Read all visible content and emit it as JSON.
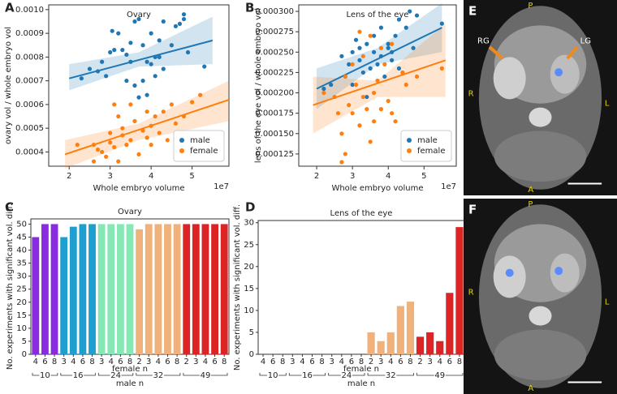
{
  "chart_data": [
    {
      "type": "scatter",
      "panel_label": "A",
      "title": "Ovary",
      "x_label": "Whole embryo volume",
      "x_offset_label": "1e7",
      "y_label": "ovary vol / whole embryo vol",
      "xlim": [
        1.5,
        5.9
      ],
      "xticks": [
        2,
        3,
        4,
        5
      ],
      "ylim": [
        0.00034,
        0.00102
      ],
      "yticks": [
        0.0004,
        0.0005,
        0.0006,
        0.0007,
        0.0008,
        0.0009,
        {
          "value": 0.001,
          "label": "0.0010"
        }
      ],
      "legend": "lower right",
      "series": [
        {
          "name": "male",
          "color": "#1f77b4",
          "x": [
            2.3,
            2.5,
            2.7,
            2.8,
            2.9,
            3.0,
            3.05,
            3.1,
            3.2,
            3.3,
            3.4,
            3.4,
            3.5,
            3.5,
            3.6,
            3.6,
            3.7,
            3.7,
            3.8,
            3.8,
            3.9,
            3.9,
            4.0,
            4.0,
            4.1,
            4.1,
            4.2,
            4.2,
            4.3,
            4.3,
            4.5,
            4.6,
            4.7,
            4.8,
            4.8,
            4.9,
            5.3
          ],
          "values": [
            0.00071,
            0.00075,
            0.00074,
            0.00078,
            0.00072,
            0.00082,
            0.00091,
            0.00083,
            0.0009,
            0.00083,
            0.00081,
            0.0007,
            0.00078,
            0.00086,
            0.00095,
            0.00068,
            0.00096,
            0.00063,
            0.00085,
            0.0007,
            0.00078,
            0.00064,
            0.0009,
            0.00077,
            0.0008,
            0.00072,
            0.0008,
            0.00087,
            0.00095,
            0.00075,
            0.00085,
            0.00093,
            0.00094,
            0.00096,
            0.00098,
            0.00082,
            0.00076
          ],
          "fit": {
            "x": [
              2,
              5.5
            ],
            "values": [
              0.00071,
              0.00087
            ]
          },
          "ci": {
            "x": [
              2,
              3.7,
              5.5
            ],
            "lower": [
              0.00066,
              0.00076,
              0.00077
            ],
            "upper": [
              0.00077,
              0.00082,
              0.00097
            ]
          }
        },
        {
          "name": "female",
          "color": "#ff7f0e",
          "x": [
            2.2,
            2.6,
            2.6,
            2.7,
            2.8,
            2.9,
            3.0,
            3.0,
            3.1,
            3.1,
            3.2,
            3.2,
            3.3,
            3.3,
            3.4,
            3.5,
            3.5,
            3.6,
            3.7,
            3.8,
            3.9,
            3.9,
            4.0,
            4.0,
            4.1,
            4.2,
            4.3,
            4.4,
            4.5,
            4.6,
            4.8,
            5.0,
            5.2
          ],
          "values": [
            0.00043,
            0.00043,
            0.00036,
            0.00041,
            0.0004,
            0.00038,
            0.00048,
            0.00044,
            0.00042,
            0.0006,
            0.00055,
            0.00036,
            0.0005,
            0.00047,
            0.00043,
            0.0006,
            0.00045,
            0.00053,
            0.00039,
            0.00049,
            0.00046,
            0.00057,
            0.00051,
            0.00043,
            0.00055,
            0.00048,
            0.00057,
            0.00045,
            0.0006,
            0.00052,
            0.00055,
            0.00061,
            0.00064
          ],
          "fit": {
            "x": [
              1.9,
              5.9
            ],
            "values": [
              0.00039,
              0.00062
            ]
          },
          "ci": {
            "x": [
              1.9,
              3.7,
              5.9
            ],
            "lower": [
              0.00033,
              0.00045,
              0.00053
            ],
            "upper": [
              0.00045,
              0.00052,
              0.0007
            ]
          }
        }
      ]
    },
    {
      "type": "scatter",
      "panel_label": "B",
      "title": "Lens of the eye",
      "x_label": "Whole embryo volume",
      "x_offset_label": "1e7",
      "y_label": "lens of the eye vol / whole embryo vol",
      "xlim": [
        1.5,
        5.9
      ],
      "xticks": [
        2,
        3,
        4,
        5
      ],
      "ylim": [
        0.00011,
        0.000308
      ],
      "yticks": [
        0.000125,
        {
          "value": 0.00015,
          "label": "0.000150"
        },
        0.000175,
        {
          "value": 0.0002,
          "label": "0.000200"
        },
        0.000225,
        {
          "value": 0.00025,
          "label": "0.000250"
        },
        0.000275,
        {
          "value": 0.0003,
          "label": "0.000300"
        }
      ],
      "legend": "lower right",
      "series": [
        {
          "name": "male",
          "color": "#1f77b4",
          "x": [
            2.2,
            2.4,
            2.7,
            2.8,
            2.9,
            3.0,
            3.0,
            3.1,
            3.2,
            3.2,
            3.3,
            3.4,
            3.4,
            3.5,
            3.6,
            3.6,
            3.7,
            3.8,
            3.8,
            3.9,
            4.0,
            4.0,
            4.1,
            4.1,
            4.2,
            4.3,
            4.3,
            4.5,
            4.6,
            4.7,
            4.8,
            5.5
          ],
          "values": [
            0.000205,
            0.00021,
            0.000245,
            0.00022,
            0.000235,
            0.00025,
            0.00021,
            0.000265,
            0.00024,
            0.000255,
            0.000225,
            0.00026,
            0.000195,
            0.00023,
            0.00025,
            0.00027,
            0.000235,
            0.00028,
            0.000245,
            0.00022,
            0.00026,
            0.000255,
            0.00024,
            0.00025,
            0.00027,
            0.00029,
            0.00023,
            0.00028,
            0.0003,
            0.000255,
            0.000295,
            0.000285
          ],
          "fit": {
            "x": [
              2,
              5.5
            ],
            "values": [
              0.000205,
              0.00028
            ]
          },
          "ci": {
            "x": [
              2,
              3.7,
              5.5
            ],
            "lower": [
              0.00018,
              0.000235,
              0.00025
            ],
            "upper": [
              0.00023,
              0.000255,
              0.00031
            ]
          }
        },
        {
          "name": "female",
          "color": "#ff7f0e",
          "x": [
            2.2,
            2.5,
            2.6,
            2.7,
            2.7,
            2.8,
            2.8,
            2.9,
            3.0,
            3.0,
            3.1,
            3.2,
            3.2,
            3.3,
            3.3,
            3.4,
            3.5,
            3.5,
            3.6,
            3.6,
            3.7,
            3.8,
            3.8,
            3.9,
            4.0,
            4.1,
            4.1,
            4.2,
            4.4,
            4.5,
            4.8,
            5.5
          ],
          "values": [
            0.0002,
            0.000195,
            0.000175,
            0.00015,
            0.000115,
            0.000125,
            0.00022,
            0.000185,
            0.000175,
            0.000235,
            0.00021,
            0.000275,
            0.00016,
            0.000195,
            0.000245,
            0.00018,
            0.00027,
            0.00014,
            0.0002,
            0.000165,
            0.000215,
            0.00018,
            0.000255,
            0.000235,
            0.00019,
            0.000175,
            0.00026,
            0.000165,
            0.000225,
            0.00021,
            0.00022,
            0.00023
          ],
          "fit": {
            "x": [
              1.9,
              5.6
            ],
            "values": [
              0.000185,
              0.00024
            ]
          },
          "ci": {
            "x": [
              1.9,
              3.7,
              5.6
            ],
            "lower": [
              0.00015,
              0.000195,
              0.000195
            ],
            "upper": [
              0.00022,
              0.000215,
              0.000285
            ]
          }
        }
      ]
    },
    {
      "type": "bar",
      "panel_label": "C",
      "title": "Ovary",
      "x_label": "female n",
      "group_label": "male n",
      "y_label": "No. experiments with significant vol. diff.",
      "ylim": [
        0,
        52
      ],
      "yticks": [
        0,
        5,
        10,
        15,
        20,
        25,
        30,
        35,
        40,
        45,
        50
      ],
      "groups": [
        {
          "name": "10",
          "color": "#8a2be2",
          "categories": [
            "4",
            "6",
            "8"
          ],
          "values": [
            45,
            50,
            50
          ]
        },
        {
          "name": "16",
          "color": "#1f9fcf",
          "categories": [
            "3",
            "4",
            "6",
            "8"
          ],
          "values": [
            45,
            49,
            50,
            50
          ]
        },
        {
          "name": "24",
          "color": "#86e8b4",
          "categories": [
            "3",
            "4",
            "6",
            "8"
          ],
          "values": [
            50,
            50,
            50,
            50
          ]
        },
        {
          "name": "32",
          "color": "#f0b27a",
          "categories": [
            "2",
            "3",
            "4",
            "6",
            "8"
          ],
          "values": [
            48,
            50,
            50,
            50,
            50
          ]
        },
        {
          "name": "49",
          "color": "#dc2424",
          "categories": [
            "2",
            "3",
            "4",
            "6",
            "8"
          ],
          "values": [
            50,
            50,
            50,
            50,
            50
          ]
        }
      ]
    },
    {
      "type": "bar",
      "panel_label": "D",
      "title": "Lens of the eye",
      "x_label": "female n",
      "group_label": "male n",
      "y_label": "No. experiments with significant vol. diff.",
      "ylim": [
        0,
        30.5
      ],
      "yticks": [
        0,
        5,
        10,
        15,
        20,
        25,
        30
      ],
      "groups": [
        {
          "name": "10",
          "color": "#8a2be2",
          "categories": [
            "4",
            "6",
            "8"
          ],
          "values": [
            0,
            0,
            0
          ]
        },
        {
          "name": "16",
          "color": "#1f9fcf",
          "categories": [
            "3",
            "4",
            "6",
            "8"
          ],
          "values": [
            0,
            0,
            0,
            0
          ]
        },
        {
          "name": "24",
          "color": "#86e8b4",
          "categories": [
            "3",
            "4",
            "6",
            "8"
          ],
          "values": [
            0,
            0,
            0,
            0
          ]
        },
        {
          "name": "32",
          "color": "#f0b27a",
          "categories": [
            "2",
            "3",
            "4",
            "6",
            "8"
          ],
          "values": [
            5,
            3,
            5,
            11,
            12
          ]
        },
        {
          "name": "49",
          "color": "#dc2424",
          "categories": [
            "2",
            "3",
            "4",
            "6",
            "8"
          ],
          "values": [
            4,
            5,
            3,
            14,
            29
          ]
        }
      ]
    }
  ],
  "images": [
    {
      "panel_label": "E",
      "annotations": [
        "P",
        "RG",
        "LG",
        "R",
        "L",
        "A"
      ]
    },
    {
      "panel_label": "F",
      "annotations": [
        "P",
        "R",
        "L",
        "A"
      ]
    }
  ]
}
